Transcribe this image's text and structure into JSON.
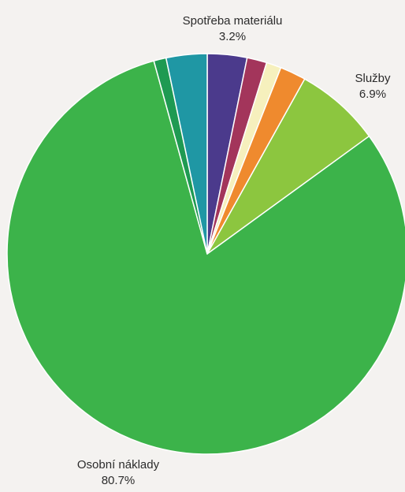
{
  "chart_data": {
    "type": "pie",
    "start_angle_deg": 90,
    "direction": "clockwise",
    "slices": [
      {
        "label": "Spotřeba materiálu",
        "value": 3.2,
        "color": "#4b3a8c"
      },
      {
        "label": "",
        "value": 1.6,
        "color": "#a3355b"
      },
      {
        "label": "",
        "value": 1.2,
        "color": "#f6f0bd"
      },
      {
        "label": "",
        "value": 2.1,
        "color": "#ef8a2e"
      },
      {
        "label": "Služby",
        "value": 6.9,
        "color": "#8cc63f"
      },
      {
        "label": "Osobní náklady",
        "value": 80.7,
        "color": "#3cb34a"
      },
      {
        "label": "",
        "value": 1.0,
        "color": "#1f9a52"
      },
      {
        "label": "",
        "value": 3.3,
        "color": "#1f97a4"
      }
    ],
    "labels": {
      "spotreba": {
        "name": "Spotřeba materiálu",
        "percent": "3.2%"
      },
      "sluzby": {
        "name": "Služby",
        "percent": "6.9%"
      },
      "osobni": {
        "name": "Osobní náklady",
        "percent": "80.7%"
      }
    }
  }
}
